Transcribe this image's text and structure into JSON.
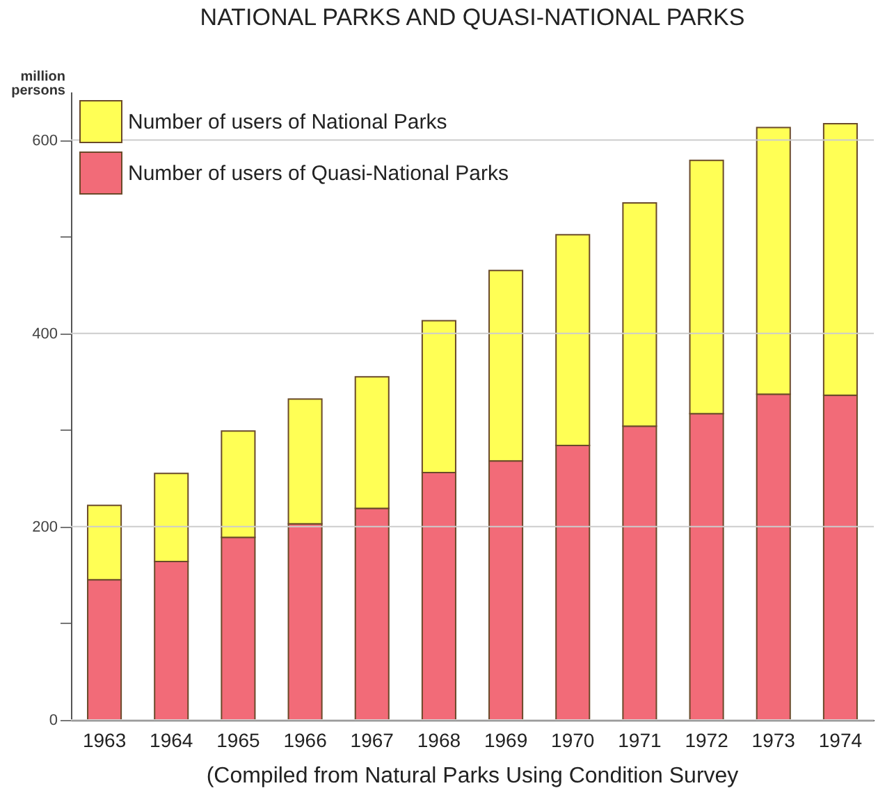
{
  "chart_data": {
    "type": "bar",
    "title": "NATIONAL PARKS AND QUASI-NATIONAL PARKS",
    "ylabel": "million persons",
    "stacked": true,
    "categories": [
      "1963",
      "1964",
      "1965",
      "1966",
      "1967",
      "1968",
      "1969",
      "1970",
      "1971",
      "1972",
      "1973",
      "1974"
    ],
    "series": [
      {
        "name": "Number of users of Quasi-National Parks",
        "color": "#f26b78",
        "values": [
          145,
          164,
          189,
          203,
          219,
          256,
          268,
          284,
          304,
          317,
          337,
          336
        ]
      },
      {
        "name": "Number of users of National Parks",
        "color": "#ffff55",
        "values": [
          77,
          91,
          110,
          129,
          136,
          157,
          197,
          218,
          231,
          262,
          276,
          281
        ]
      }
    ],
    "ylim": [
      0,
      650
    ],
    "yticks": [
      0,
      {
        "value": 100,
        "label": null
      },
      200,
      {
        "value": 300,
        "label": null
      },
      400,
      {
        "value": 500,
        "label": null
      },
      600
    ],
    "grid": "y",
    "legend": "top left",
    "annotations": [
      "(Compiled from Natural Parks Using Condition Survey"
    ]
  }
}
